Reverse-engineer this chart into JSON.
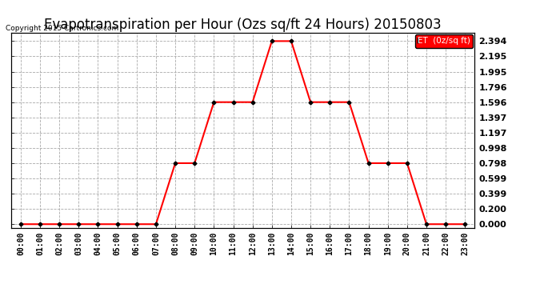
{
  "title": "Evapotranspiration per Hour (Ozs sq/ft 24 Hours) 20150803",
  "copyright": "Copyright 2015 Cartronics.com",
  "legend_label": "ET  (0z/sq ft)",
  "hours": [
    "00:00",
    "01:00",
    "02:00",
    "03:00",
    "04:00",
    "05:00",
    "06:00",
    "07:00",
    "08:00",
    "09:00",
    "10:00",
    "11:00",
    "12:00",
    "13:00",
    "14:00",
    "15:00",
    "16:00",
    "17:00",
    "18:00",
    "19:00",
    "20:00",
    "21:00",
    "22:00",
    "23:00"
  ],
  "values": [
    0.0,
    0.0,
    0.0,
    0.0,
    0.0,
    0.0,
    0.0,
    0.0,
    0.798,
    0.798,
    1.596,
    1.596,
    1.596,
    2.394,
    2.394,
    1.596,
    1.596,
    1.596,
    0.798,
    0.798,
    0.798,
    0.0,
    0.0,
    0.0
  ],
  "line_color": "red",
  "marker_color": "black",
  "background_color": "#ffffff",
  "plot_bg_color": "#ffffff",
  "grid_color": "#aaaaaa",
  "title_fontsize": 12,
  "ylabel_ticks": [
    0.0,
    0.2,
    0.399,
    0.599,
    0.798,
    0.998,
    1.197,
    1.397,
    1.596,
    1.796,
    1.995,
    2.195,
    2.394
  ],
  "ylim": [
    -0.05,
    2.5
  ],
  "legend_bg": "red",
  "legend_text_color": "white"
}
